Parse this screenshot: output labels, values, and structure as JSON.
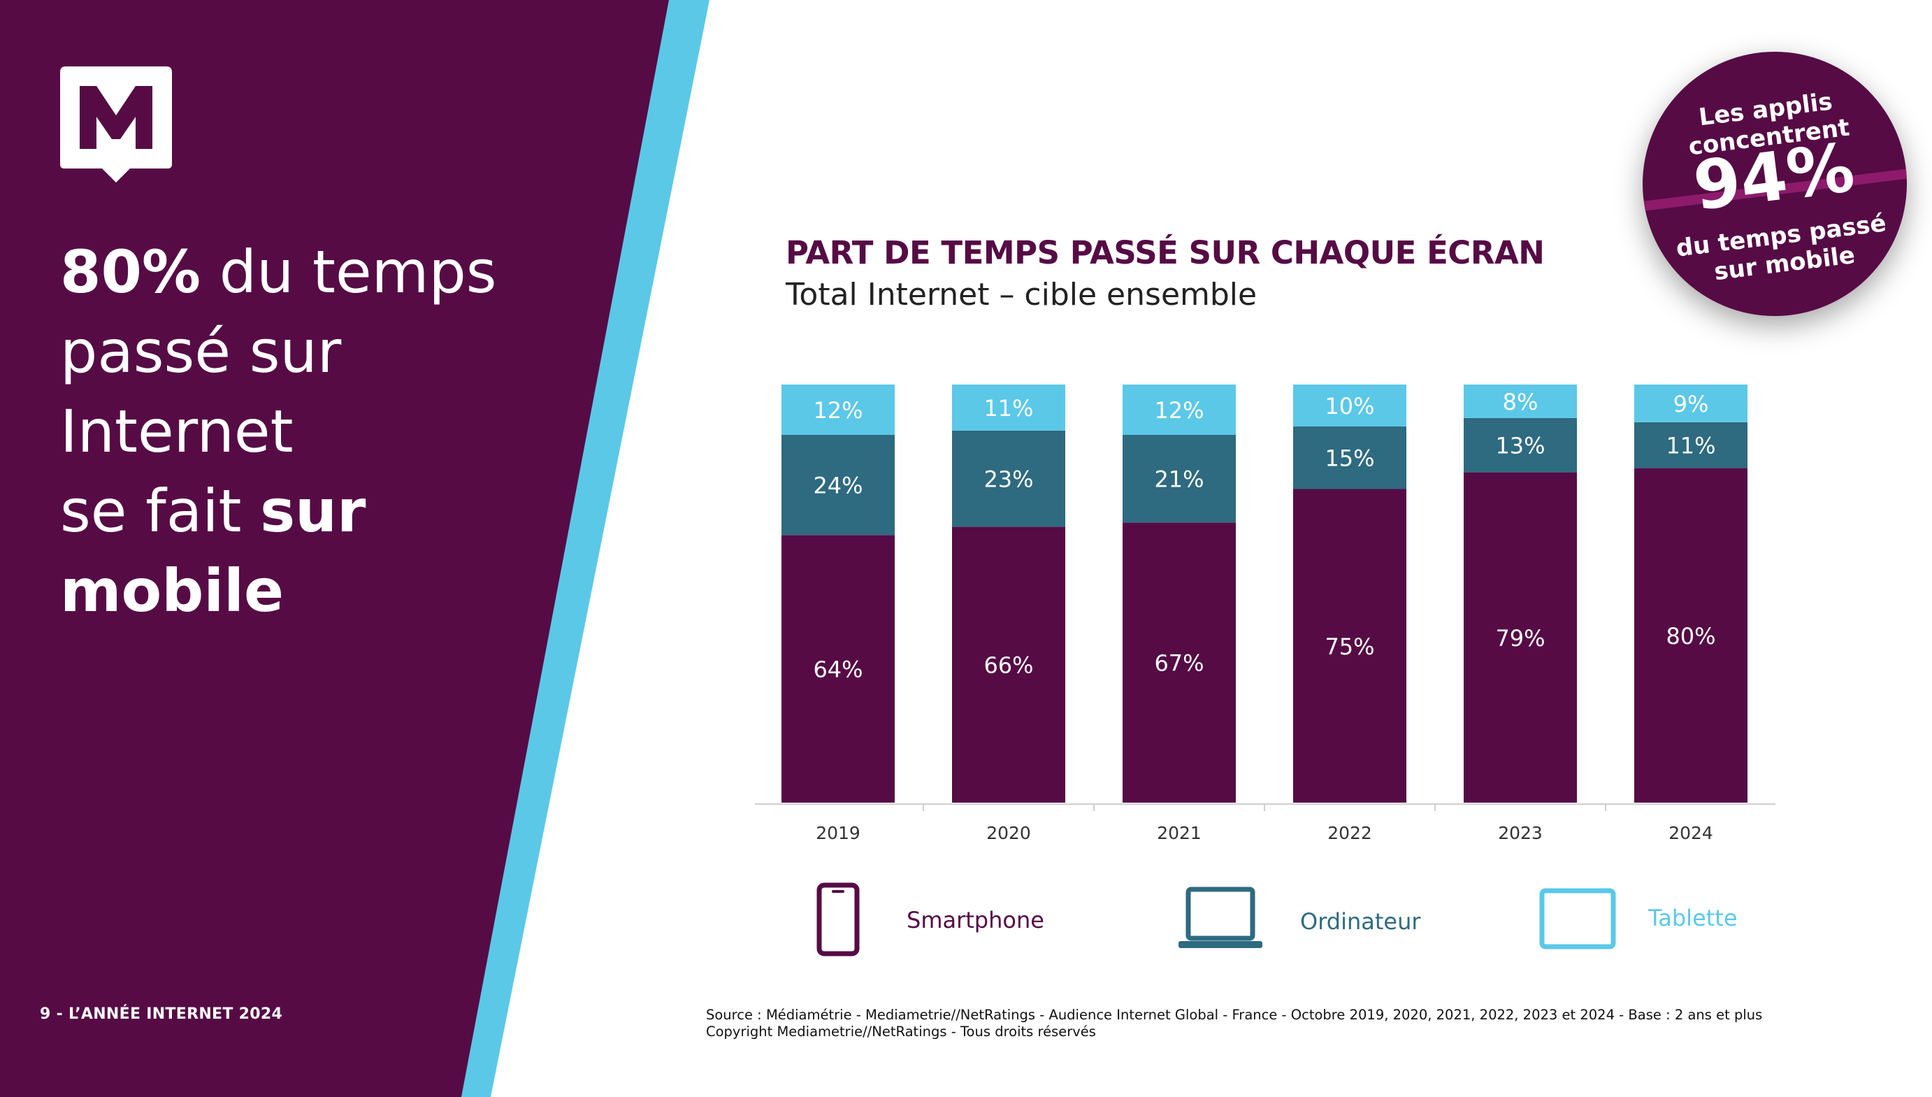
{
  "sidebar": {
    "headline": {
      "bold1": "80%",
      "text1": " du temps",
      "line2": "passé sur Internet",
      "text3": "se fait ",
      "bold3": "sur mobile"
    },
    "footer": "9 - L’ANNÉE INTERNET 2024"
  },
  "badge": {
    "line1a": "Les applis",
    "line1b": "concentrent",
    "big": "94%",
    "line3a": "du temps passé",
    "line3b": "sur mobile"
  },
  "legend": [
    {
      "label": "Smartphone",
      "icon": "smartphone-icon",
      "color": "#560b45"
    },
    {
      "label": "Ordinateur",
      "icon": "laptop-icon",
      "color": "#2e6a80"
    },
    {
      "label": "Tablette",
      "icon": "tablet-icon",
      "color": "#5bc8e8"
    }
  ],
  "source": {
    "line1": "Source : Médiamétrie - Mediametrie//NetRatings - Audience Internet Global - France - Octobre 2019, 2020, 2021, 2022, 2023 et 2024 - Base : 2 ans et plus",
    "line2": "Copyright Mediametrie//NetRatings - Tous droits réservés"
  },
  "colors": {
    "purple": "#560b45",
    "teal": "#2e6a80",
    "lightblue": "#5bc8e8"
  },
  "chart_data": {
    "type": "bar",
    "stacked": true,
    "title": "PART DE TEMPS PASSÉ SUR CHAQUE ÉCRAN",
    "subtitle": "Total Internet – cible ensemble",
    "categories": [
      "2019",
      "2020",
      "2021",
      "2022",
      "2023",
      "2024"
    ],
    "series": [
      {
        "name": "Smartphone",
        "values": [
          64,
          66,
          67,
          75,
          79,
          80
        ],
        "labels": [
          "64%",
          "66%",
          "67%",
          "75%",
          "79%",
          "80%"
        ],
        "color": "#560b45"
      },
      {
        "name": "Ordinateur",
        "values": [
          24,
          23,
          21,
          15,
          13,
          11
        ],
        "labels": [
          "24%",
          "23%",
          "21%",
          "15%",
          "13%",
          "11%"
        ],
        "color": "#2e6a80"
      },
      {
        "name": "Tablette",
        "values": [
          12,
          11,
          12,
          10,
          8,
          9
        ],
        "labels": [
          "12%",
          "11%",
          "12%",
          "10%",
          "8%",
          "9%"
        ],
        "color": "#5bc8e8"
      }
    ],
    "ylim": [
      0,
      100
    ],
    "grid": false,
    "legend_position": "bottom"
  }
}
